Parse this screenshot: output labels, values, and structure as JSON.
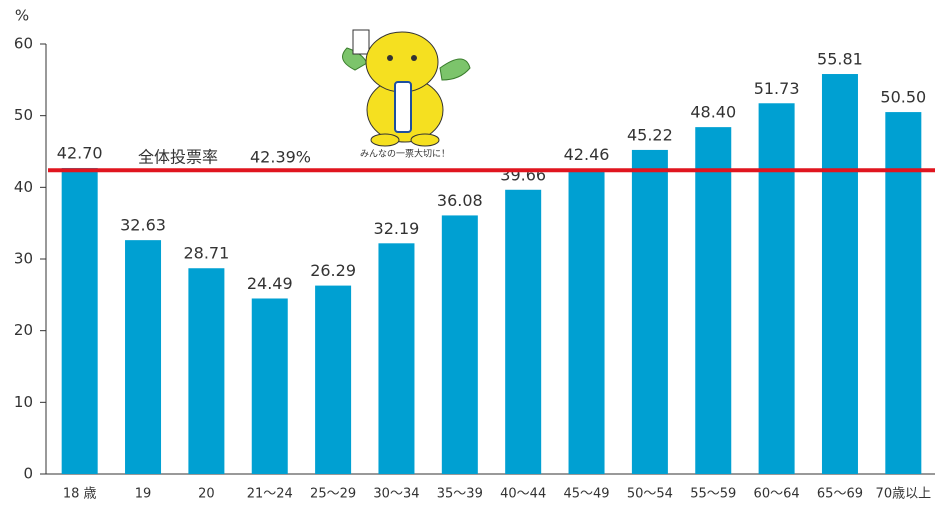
{
  "chart_data": {
    "type": "bar",
    "y_unit": "%",
    "categories": [
      "18 歳",
      "19",
      "20",
      "21～24",
      "25～29",
      "30～34",
      "35～39",
      "40～44",
      "45～49",
      "50～54",
      "55～59",
      "60～64",
      "65～69",
      "70歳以上"
    ],
    "values": [
      42.7,
      32.63,
      28.71,
      24.49,
      26.29,
      32.19,
      36.08,
      39.66,
      42.46,
      45.22,
      48.4,
      51.73,
      55.81,
      50.5
    ],
    "value_labels": [
      "42.70",
      "32.63",
      "28.71",
      "24.49",
      "26.29",
      "32.19",
      "36.08",
      "39.66",
      "42.46",
      "45.22",
      "48.40",
      "51.73",
      "55.81",
      "50.50"
    ],
    "color": "#00a0d2",
    "ylim": [
      0,
      60
    ],
    "yticks": [
      0,
      10,
      20,
      30,
      40,
      50,
      60
    ],
    "reference_line": {
      "label": "全体投票率",
      "value": 42.39,
      "value_label": "42.39%",
      "color": "#e0151f"
    },
    "mascot_caption": "みんなの一票大切に！"
  }
}
